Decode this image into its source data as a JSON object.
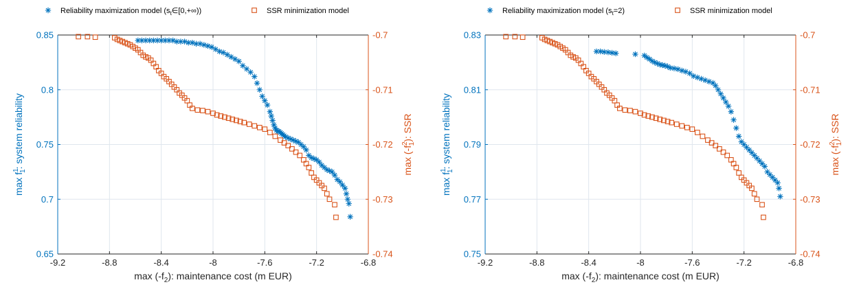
{
  "colors": {
    "reliability": "#0072bd",
    "ssr": "#d95319",
    "grid": "#dfe6ed"
  },
  "chart_data": [
    {
      "type": "scatter",
      "legend": {
        "placement": "top",
        "items": [
          {
            "marker": "asterisk",
            "label_main": "Reliability maximization model (s",
            "label_sub": "t",
            "label_tail": "∈[0,+∞))"
          },
          {
            "marker": "square",
            "label": "SSR minimization model"
          }
        ]
      },
      "xlabel": {
        "main": "max (-f",
        "sub": "2",
        "tail": "): maintenance cost (m EUR)"
      },
      "ylabel_left": {
        "main": "max f",
        "sup": "1",
        "sub": "1",
        "tail": ": system reliability"
      },
      "ylabel_right": {
        "main": "max (-f",
        "sup": "2",
        "sub": "1",
        "tail": "): SSR"
      },
      "xlim": [
        -9.2,
        -6.8
      ],
      "ylim_left": [
        0.65,
        0.85
      ],
      "ylim_right": [
        -0.74,
        -0.7
      ],
      "xticks": [
        "-9.2",
        "-8.8",
        "-8.4",
        "-8",
        "-7.6",
        "-7.2",
        "-6.8"
      ],
      "yticks_left": [
        "0.85",
        "0.8",
        "0.75",
        "0.7",
        "0.65"
      ],
      "yticks_right": [
        "-0.7",
        "-0.71",
        "-0.72",
        "-0.73",
        "-0.74"
      ],
      "grid": true,
      "series": [
        {
          "name": "Reliability maximization model",
          "axis": "left",
          "marker": "asterisk",
          "x": [
            -8.58,
            -8.55,
            -8.52,
            -8.49,
            -8.46,
            -8.43,
            -8.4,
            -8.37,
            -8.34,
            -8.31,
            -8.28,
            -8.25,
            -8.22,
            -8.19,
            -8.16,
            -8.13,
            -8.1,
            -8.07,
            -8.04,
            -8.01,
            -7.98,
            -7.95,
            -7.92,
            -7.89,
            -7.86,
            -7.83,
            -7.8,
            -7.77,
            -7.74,
            -7.71,
            -7.68,
            -7.66,
            -7.64,
            -7.62,
            -7.6,
            -7.58,
            -7.56,
            -7.55,
            -7.54,
            -7.53,
            -7.52,
            -7.51,
            -7.5,
            -7.49,
            -7.48,
            -7.47,
            -7.46,
            -7.45,
            -7.44,
            -7.42,
            -7.4,
            -7.38,
            -7.36,
            -7.34,
            -7.32,
            -7.3,
            -7.28,
            -7.26,
            -7.24,
            -7.22,
            -7.2,
            -7.18,
            -7.16,
            -7.14,
            -7.12,
            -7.1,
            -7.08,
            -7.06,
            -7.04,
            -7.02,
            -7.0,
            -6.98,
            -6.97,
            -6.96,
            -6.95,
            -6.94
          ],
          "y": [
            0.845,
            0.845,
            0.845,
            0.845,
            0.845,
            0.845,
            0.845,
            0.845,
            0.845,
            0.845,
            0.844,
            0.844,
            0.844,
            0.843,
            0.843,
            0.842,
            0.842,
            0.841,
            0.84,
            0.839,
            0.837,
            0.835,
            0.834,
            0.832,
            0.83,
            0.828,
            0.826,
            0.822,
            0.819,
            0.816,
            0.812,
            0.806,
            0.8,
            0.794,
            0.79,
            0.786,
            0.78,
            0.776,
            0.772,
            0.768,
            0.765,
            0.763,
            0.762,
            0.762,
            0.761,
            0.76,
            0.759,
            0.758,
            0.757,
            0.756,
            0.755,
            0.754,
            0.753,
            0.752,
            0.75,
            0.748,
            0.745,
            0.74,
            0.738,
            0.737,
            0.736,
            0.734,
            0.731,
            0.729,
            0.727,
            0.726,
            0.725,
            0.722,
            0.718,
            0.716,
            0.713,
            0.71,
            0.705,
            0.7,
            0.696,
            0.684
          ]
        },
        {
          "name": "SSR minimization model",
          "axis": "right",
          "marker": "square",
          "x": [
            -9.04,
            -8.97,
            -8.91,
            -8.76,
            -8.74,
            -8.72,
            -8.7,
            -8.68,
            -8.66,
            -8.64,
            -8.62,
            -8.6,
            -8.58,
            -8.56,
            -8.54,
            -8.52,
            -8.5,
            -8.48,
            -8.46,
            -8.44,
            -8.42,
            -8.4,
            -8.38,
            -8.36,
            -8.34,
            -8.32,
            -8.3,
            -8.28,
            -8.26,
            -8.24,
            -8.22,
            -8.2,
            -8.18,
            -8.16,
            -8.12,
            -8.08,
            -8.04,
            -8.0,
            -7.97,
            -7.94,
            -7.91,
            -7.88,
            -7.85,
            -7.82,
            -7.79,
            -7.76,
            -7.72,
            -7.68,
            -7.64,
            -7.6,
            -7.56,
            -7.52,
            -7.48,
            -7.45,
            -7.42,
            -7.39,
            -7.36,
            -7.33,
            -7.3,
            -7.28,
            -7.26,
            -7.24,
            -7.22,
            -7.2,
            -7.18,
            -7.16,
            -7.14,
            -7.12,
            -7.1,
            -7.06,
            -7.05
          ],
          "y": [
            -0.7003,
            -0.7003,
            -0.7004,
            -0.7005,
            -0.7008,
            -0.701,
            -0.7012,
            -0.7014,
            -0.7016,
            -0.7018,
            -0.7021,
            -0.7024,
            -0.7027,
            -0.7032,
            -0.7037,
            -0.704,
            -0.7042,
            -0.7046,
            -0.7052,
            -0.7058,
            -0.7065,
            -0.707,
            -0.7076,
            -0.708,
            -0.7085,
            -0.709,
            -0.7095,
            -0.71,
            -0.7106,
            -0.711,
            -0.7115,
            -0.712,
            -0.7128,
            -0.7134,
            -0.7137,
            -0.7138,
            -0.714,
            -0.7143,
            -0.7146,
            -0.7148,
            -0.715,
            -0.7152,
            -0.7154,
            -0.7156,
            -0.7158,
            -0.716,
            -0.7163,
            -0.7166,
            -0.7169,
            -0.7172,
            -0.7178,
            -0.7185,
            -0.7192,
            -0.7197,
            -0.7202,
            -0.7208,
            -0.7214,
            -0.722,
            -0.7228,
            -0.7235,
            -0.7242,
            -0.7252,
            -0.726,
            -0.7265,
            -0.727,
            -0.7275,
            -0.728,
            -0.729,
            -0.73,
            -0.731,
            -0.7333
          ]
        }
      ]
    },
    {
      "type": "scatter",
      "legend": {
        "placement": "top",
        "items": [
          {
            "marker": "asterisk",
            "label_main": "Reliability maximization model (s",
            "label_sub": "t",
            "label_tail": "=2)"
          },
          {
            "marker": "square",
            "label": "SSR minimization model"
          }
        ]
      },
      "xlabel": {
        "main": "max (-f",
        "sub": "2",
        "tail": "): maintenance cost (m EUR)"
      },
      "ylabel_left": {
        "main": "max f",
        "sup": "1",
        "sub": "1",
        "tail": ": system reliability"
      },
      "ylabel_right": {
        "main": "max (-f",
        "sup": "2",
        "sub": "1",
        "tail": "): SSR"
      },
      "xlim": [
        -9.2,
        -6.8
      ],
      "ylim_left": [
        0.75,
        0.83
      ],
      "ylim_right": [
        -0.74,
        -0.7
      ],
      "xticks": [
        "-9.2",
        "-8.8",
        "-8.4",
        "-8",
        "-7.6",
        "-7.2",
        "-6.8"
      ],
      "yticks_left": [
        "0.83",
        "0.81",
        "0.79",
        "0.77",
        "0.75"
      ],
      "yticks_right": [
        "-0.7",
        "-0.71",
        "-0.72",
        "-0.73",
        "-0.74"
      ],
      "grid": true,
      "series": [
        {
          "name": "Reliability maximization model",
          "axis": "left",
          "marker": "asterisk",
          "x": [
            -8.34,
            -8.31,
            -8.28,
            -8.25,
            -8.22,
            -8.19,
            -8.04,
            -7.97,
            -7.95,
            -7.93,
            -7.91,
            -7.89,
            -7.87,
            -7.85,
            -7.83,
            -7.81,
            -7.79,
            -7.77,
            -7.74,
            -7.71,
            -7.68,
            -7.65,
            -7.62,
            -7.59,
            -7.56,
            -7.53,
            -7.5,
            -7.47,
            -7.44,
            -7.42,
            -7.4,
            -7.38,
            -7.36,
            -7.34,
            -7.32,
            -7.3,
            -7.28,
            -7.26,
            -7.24,
            -7.22,
            -7.2,
            -7.18,
            -7.16,
            -7.14,
            -7.12,
            -7.1,
            -7.08,
            -7.06,
            -7.04,
            -7.02,
            -7.0,
            -6.98,
            -6.96,
            -6.94,
            -6.93,
            -6.92
          ],
          "y": [
            0.824,
            0.824,
            0.8238,
            0.8237,
            0.8235,
            0.8233,
            0.823,
            0.8225,
            0.8218,
            0.8212,
            0.8205,
            0.82,
            0.8196,
            0.8192,
            0.819,
            0.8188,
            0.8185,
            0.818,
            0.8178,
            0.8175,
            0.817,
            0.8166,
            0.816,
            0.815,
            0.8145,
            0.814,
            0.8135,
            0.813,
            0.8125,
            0.8115,
            0.81,
            0.8085,
            0.807,
            0.8055,
            0.804,
            0.802,
            0.799,
            0.796,
            0.793,
            0.791,
            0.79,
            0.789,
            0.788,
            0.787,
            0.786,
            0.785,
            0.784,
            0.783,
            0.782,
            0.78,
            0.779,
            0.778,
            0.777,
            0.776,
            0.774,
            0.771
          ]
        },
        {
          "name": "SSR minimization model",
          "axis": "right",
          "marker": "square",
          "x": [
            -9.04,
            -8.97,
            -8.91,
            -8.76,
            -8.74,
            -8.72,
            -8.7,
            -8.68,
            -8.66,
            -8.64,
            -8.62,
            -8.6,
            -8.58,
            -8.56,
            -8.54,
            -8.52,
            -8.5,
            -8.48,
            -8.46,
            -8.44,
            -8.42,
            -8.4,
            -8.38,
            -8.36,
            -8.34,
            -8.32,
            -8.3,
            -8.28,
            -8.26,
            -8.24,
            -8.22,
            -8.2,
            -8.18,
            -8.16,
            -8.12,
            -8.08,
            -8.04,
            -8.0,
            -7.97,
            -7.94,
            -7.91,
            -7.88,
            -7.85,
            -7.82,
            -7.79,
            -7.76,
            -7.72,
            -7.68,
            -7.64,
            -7.6,
            -7.56,
            -7.52,
            -7.48,
            -7.45,
            -7.42,
            -7.39,
            -7.36,
            -7.33,
            -7.3,
            -7.28,
            -7.26,
            -7.24,
            -7.22,
            -7.2,
            -7.18,
            -7.16,
            -7.14,
            -7.12,
            -7.1,
            -7.06,
            -7.05
          ],
          "y": [
            -0.7003,
            -0.7003,
            -0.7004,
            -0.7005,
            -0.7008,
            -0.701,
            -0.7012,
            -0.7014,
            -0.7016,
            -0.7018,
            -0.7021,
            -0.7024,
            -0.7027,
            -0.7032,
            -0.7037,
            -0.704,
            -0.7042,
            -0.7046,
            -0.7052,
            -0.7058,
            -0.7065,
            -0.707,
            -0.7076,
            -0.708,
            -0.7085,
            -0.709,
            -0.7095,
            -0.71,
            -0.7106,
            -0.711,
            -0.7115,
            -0.712,
            -0.7128,
            -0.7134,
            -0.7137,
            -0.7138,
            -0.714,
            -0.7143,
            -0.7146,
            -0.7148,
            -0.715,
            -0.7152,
            -0.7154,
            -0.7156,
            -0.7158,
            -0.716,
            -0.7163,
            -0.7166,
            -0.7169,
            -0.7172,
            -0.7178,
            -0.7185,
            -0.7192,
            -0.7197,
            -0.7202,
            -0.7208,
            -0.7214,
            -0.722,
            -0.7228,
            -0.7235,
            -0.7242,
            -0.7252,
            -0.726,
            -0.7265,
            -0.727,
            -0.7275,
            -0.728,
            -0.729,
            -0.73,
            -0.731,
            -0.7333
          ]
        }
      ]
    }
  ]
}
